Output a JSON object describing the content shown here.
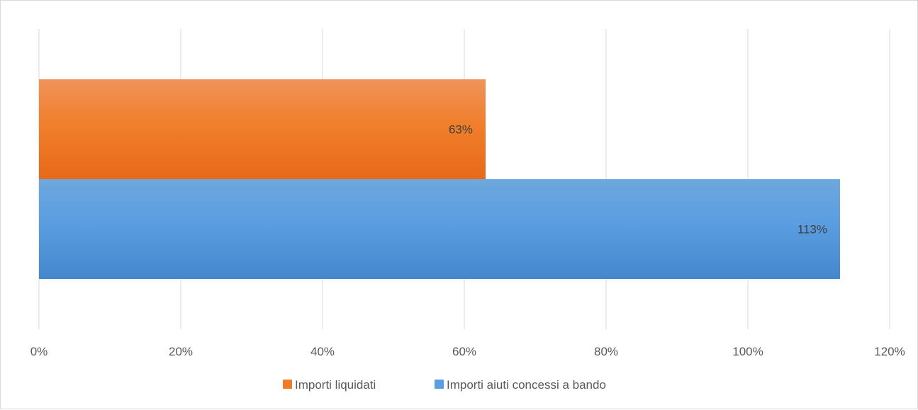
{
  "chart_data": {
    "type": "bar",
    "orientation": "horizontal",
    "title": "",
    "xlabel": "",
    "ylabel": "",
    "xlim": [
      0,
      120
    ],
    "x_tick_step": 20,
    "x_tick_format": "percent",
    "grid": "vertical",
    "legend_position": "bottom",
    "series": [
      {
        "name": "Importi liquidati",
        "value": 63,
        "value_label": "63%",
        "color": "#f07b28"
      },
      {
        "name": "Importi aiuti concessi a bando",
        "value": 113,
        "value_label": "113%",
        "color": "#5a9de0"
      }
    ],
    "colors": {
      "gridline": "#d9d9d9",
      "text": "#595959",
      "data_label": "#404040"
    }
  }
}
